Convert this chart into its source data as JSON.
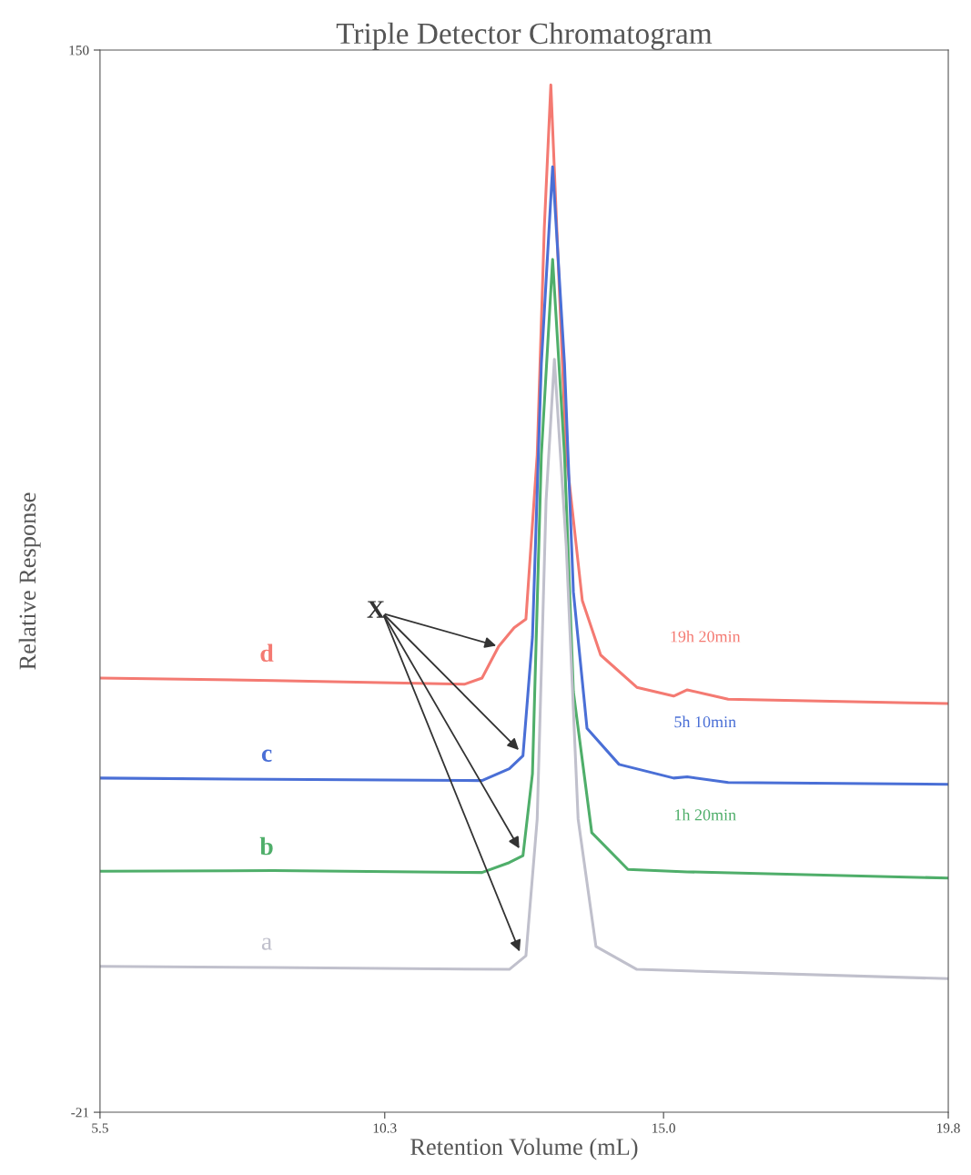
{
  "chart_data": {
    "type": "line",
    "title": "Triple Detector Chromatogram",
    "xlabel": "Retention Volume (mL)",
    "ylabel": "Relative Response",
    "xlim": [
      5.5,
      19.8
    ],
    "ylim": [
      -21,
      150
    ],
    "xticks": [
      5.5,
      10.3,
      {
        "value": 15,
        "label": "15.0"
      },
      19.8
    ],
    "yticks": [
      150,
      -21
    ],
    "grid": false,
    "legend": false,
    "marker": "none",
    "line_style": "solid",
    "series": [
      {
        "name": "d",
        "color": "#f47a72",
        "x": [
          5.5,
          8.42,
          11.64,
          11.94,
          12.22,
          12.48,
          12.68,
          12.87,
          12.99,
          13.1,
          13.2,
          13.36,
          13.63,
          13.94,
          14.55,
          15.17,
          15.4,
          16.09,
          17.62,
          19.16,
          19.8
        ],
        "values": [
          48.9,
          48.5,
          47.9,
          48.9,
          54.0,
          57.0,
          58.4,
          84.8,
          121.4,
          144.4,
          121.4,
          84.8,
          61.4,
          52.6,
          47.4,
          46.0,
          47.0,
          45.5,
          45.2,
          44.9,
          44.8
        ]
      },
      {
        "name": "c",
        "color": "#4a6fd6",
        "x": [
          5.5,
          8.42,
          11.94,
          12.4,
          12.63,
          12.79,
          12.94,
          13.13,
          13.33,
          13.48,
          13.71,
          14.25,
          15.17,
          15.4,
          16.09,
          19.8
        ],
        "values": [
          32.8,
          32.6,
          32.4,
          34.3,
          36.4,
          55.5,
          99.5,
          131.2,
          99.5,
          62.8,
          40.8,
          35.0,
          32.8,
          33.0,
          32.1,
          31.8
        ]
      },
      {
        "name": "b",
        "color": "#4fae6a",
        "x": [
          5.5,
          8.42,
          11.94,
          12.4,
          12.63,
          12.79,
          12.94,
          13.13,
          13.33,
          13.48,
          13.79,
          14.4,
          15.4,
          19.8
        ],
        "values": [
          17.8,
          17.9,
          17.6,
          19.2,
          20.3,
          33.5,
          84.8,
          116.3,
          84.8,
          46.7,
          24.0,
          18.1,
          17.7,
          16.7
        ]
      },
      {
        "name": "a",
        "color": "#c0c0cc",
        "x": [
          5.5,
          8.42,
          12.4,
          12.68,
          12.87,
          13.02,
          13.16,
          13.36,
          13.56,
          13.86,
          14.55,
          19.8
        ],
        "values": [
          2.5,
          2.3,
          2.0,
          4.2,
          26.2,
          77.5,
          100.2,
          70.1,
          26.2,
          5.7,
          2.0,
          0.5
        ]
      }
    ],
    "annotations": [
      "19h 20min",
      "5h 10min",
      "1h 20min",
      {
        "text": "X",
        "x": 12.22,
        "y": 54.0
      }
    ]
  }
}
